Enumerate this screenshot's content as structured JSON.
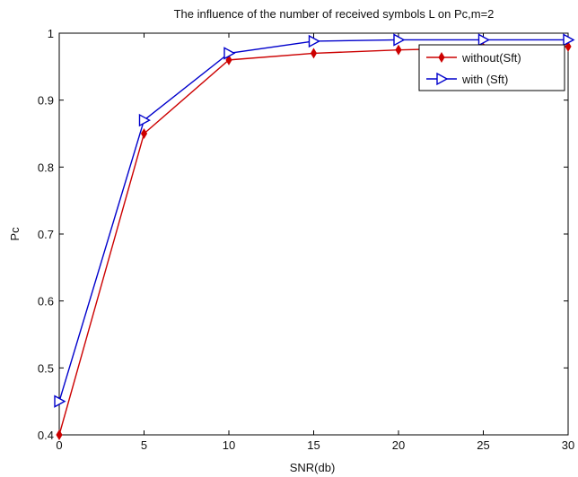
{
  "chart_data": {
    "type": "line",
    "title": "The influence of the number of received symbols L on Pc,m=2",
    "xlabel": "SNR(db)",
    "ylabel": "Pc",
    "xlim": [
      0,
      30
    ],
    "ylim": [
      0.4,
      1
    ],
    "xticks": [
      "0",
      "5",
      "10",
      "15",
      "20",
      "25",
      "30"
    ],
    "yticks": [
      "0.4",
      "0.5",
      "0.6",
      "0.7",
      "0.8",
      "0.9",
      "1"
    ],
    "x": [
      0,
      5,
      10,
      15,
      20,
      25,
      30
    ],
    "grid": false,
    "legend_position": "top-right",
    "series": [
      {
        "name": "without(Sft)",
        "values": [
          0.4,
          0.85,
          0.96,
          0.97,
          0.975,
          0.978,
          0.98
        ],
        "color": "#cc0000",
        "marker": "diamond"
      },
      {
        "name": "with (Sft)",
        "values": [
          0.45,
          0.87,
          0.97,
          0.988,
          0.99,
          0.99,
          0.99
        ],
        "color": "#0000cc",
        "marker": "triangle-right"
      }
    ]
  }
}
